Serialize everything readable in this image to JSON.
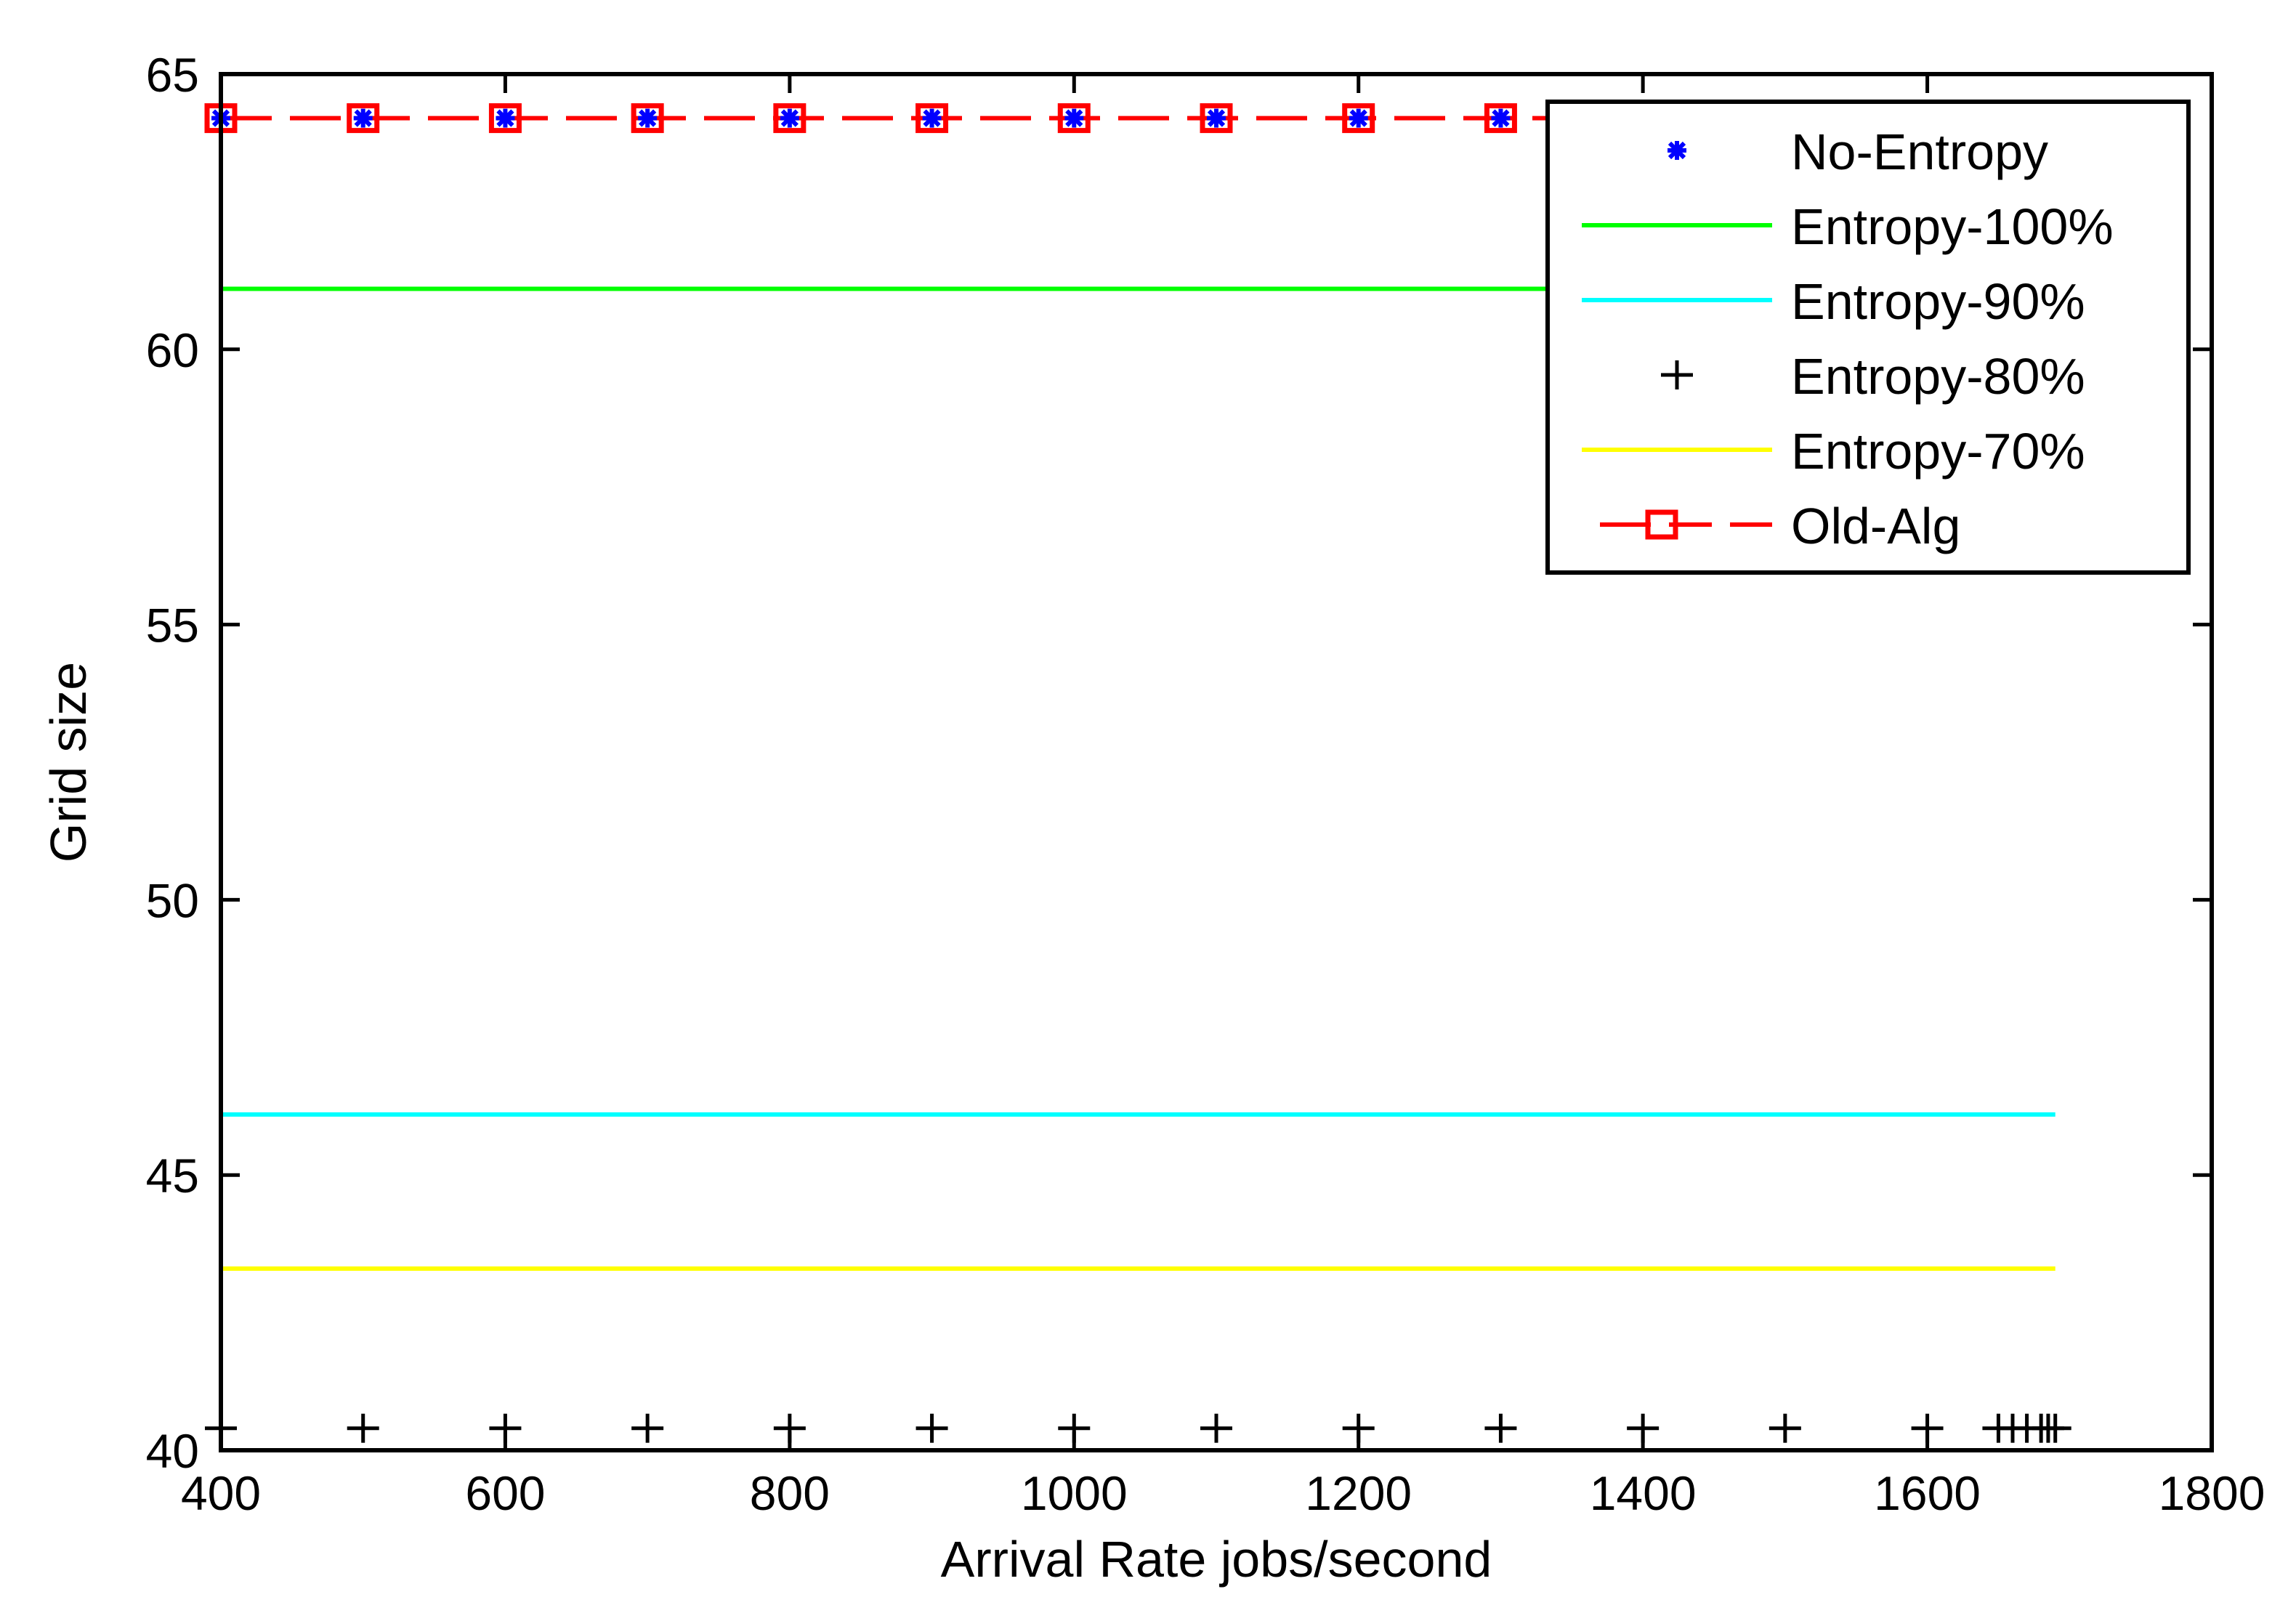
{
  "chart_data": {
    "type": "line",
    "title": "",
    "xlabel": "Arrival Rate jobs/second",
    "ylabel": "Grid size",
    "xlim": [
      400,
      1800
    ],
    "ylim": [
      40,
      65
    ],
    "xticks": [
      400,
      600,
      800,
      1000,
      1200,
      1400,
      1600,
      1800
    ],
    "yticks": [
      40,
      45,
      50,
      55,
      60,
      65
    ],
    "grid": false,
    "legend_position": "upper right",
    "x": [
      400,
      500,
      600,
      700,
      800,
      900,
      1000,
      1100,
      1200,
      1300,
      1400,
      1500,
      1600,
      1650,
      1660,
      1670,
      1680,
      1685,
      1690
    ],
    "series": [
      {
        "name": "No-Entropy",
        "color": "#0000ff",
        "line": "none",
        "marker": "asterisk",
        "values": [
          64.2,
          64.2,
          64.2,
          64.2,
          64.2,
          64.2,
          64.2,
          64.2,
          64.2,
          64.2,
          64.2,
          64.2,
          64.2,
          64.2,
          64.2,
          64.2,
          64.2,
          64.2,
          64.2
        ]
      },
      {
        "name": "Entropy-100%",
        "color": "#00ff00",
        "line": "solid",
        "marker": "none",
        "values": [
          61.1,
          61.1,
          61.1,
          61.1,
          61.1,
          61.1,
          61.1,
          61.1,
          61.1,
          61.1,
          61.1,
          61.1,
          61.1,
          61.1,
          61.1,
          61.1,
          61.1,
          61.1,
          61.1
        ]
      },
      {
        "name": "Entropy-90%",
        "color": "#00ffff",
        "line": "solid",
        "marker": "none",
        "values": [
          46.1,
          46.1,
          46.1,
          46.1,
          46.1,
          46.1,
          46.1,
          46.1,
          46.1,
          46.1,
          46.1,
          46.1,
          46.1,
          46.1,
          46.1,
          46.1,
          46.1,
          46.1,
          46.1
        ]
      },
      {
        "name": "Entropy-80%",
        "color": "#000000",
        "line": "none",
        "marker": "plus",
        "values": [
          40.4,
          40.4,
          40.4,
          40.4,
          40.4,
          40.4,
          40.4,
          40.4,
          40.4,
          40.4,
          40.4,
          40.4,
          40.4,
          40.4,
          40.4,
          40.4,
          40.4,
          40.4,
          40.4
        ]
      },
      {
        "name": "Entropy-70%",
        "color": "#ffff00",
        "line": "solid",
        "marker": "none",
        "values": [
          43.3,
          43.3,
          43.3,
          43.3,
          43.3,
          43.3,
          43.3,
          43.3,
          43.3,
          43.3,
          43.3,
          43.3,
          43.3,
          43.3,
          43.3,
          43.3,
          43.3,
          43.3,
          43.3
        ]
      },
      {
        "name": "Old-Alg",
        "color": "#ff0000",
        "line": "dashed",
        "marker": "square",
        "marker_x": [
          400,
          500,
          600,
          700,
          800,
          900,
          1000,
          1100,
          1200,
          1300,
          1400,
          1500,
          1600,
          1700
        ],
        "values": [
          64.2,
          64.2,
          64.2,
          64.2,
          64.2,
          64.2,
          64.2,
          64.2,
          64.2,
          64.2,
          64.2,
          64.2,
          64.2,
          64.2
        ]
      }
    ]
  },
  "axes": {
    "xlabel": "Arrival Rate jobs/second",
    "ylabel": "Grid size",
    "xtick_labels": [
      "400",
      "600",
      "800",
      "1000",
      "1200",
      "1400",
      "1600",
      "1800"
    ],
    "ytick_labels": [
      "40",
      "45",
      "50",
      "55",
      "60",
      "65"
    ]
  },
  "legend": {
    "items": [
      {
        "label": "No-Entropy",
        "icon": "blue-asterisk-marker"
      },
      {
        "label": "Entropy-100%",
        "icon": "green-solid-line"
      },
      {
        "label": "Entropy-90%",
        "icon": "cyan-solid-line"
      },
      {
        "label": "Entropy-80%",
        "icon": "black-plus-marker"
      },
      {
        "label": "Entropy-70%",
        "icon": "yellow-solid-line"
      },
      {
        "label": "Old-Alg",
        "icon": "red-dashed-square-marker"
      }
    ]
  }
}
